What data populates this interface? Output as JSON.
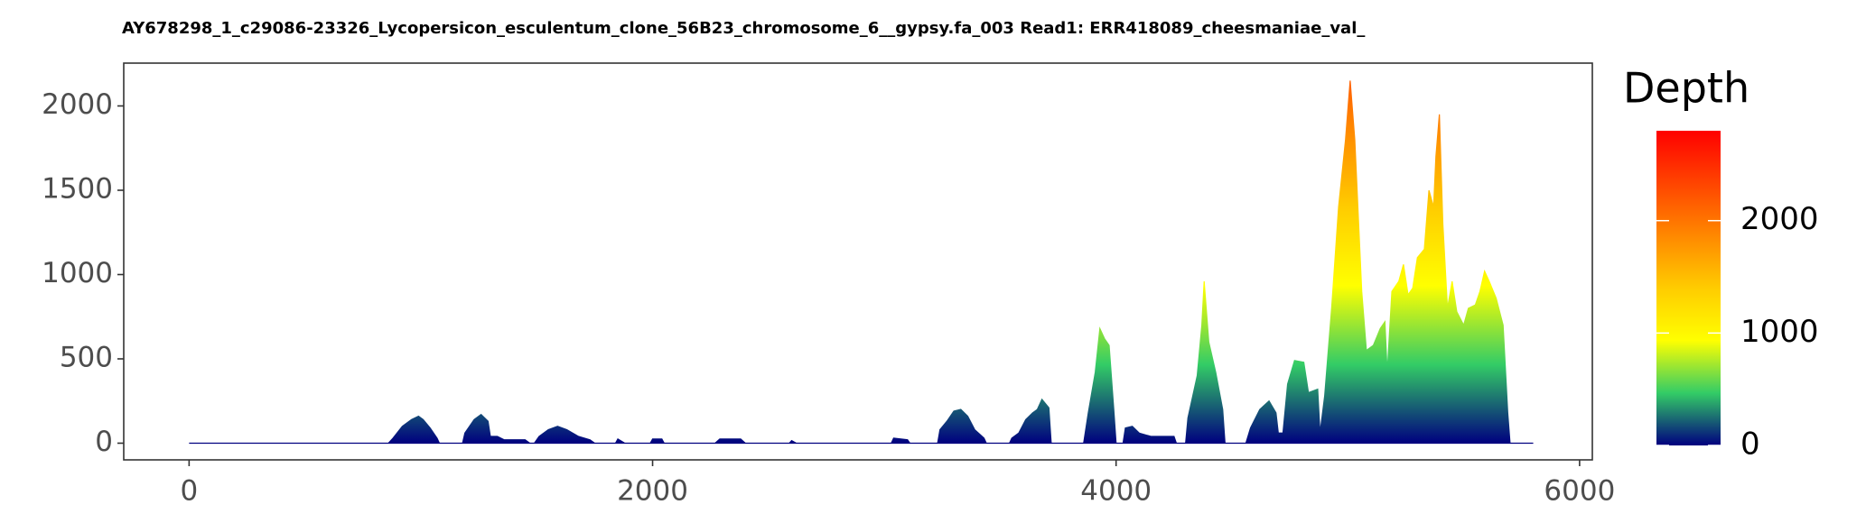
{
  "chart_data": {
    "type": "area",
    "title": "AY678298_1_c29086-23326_Lycopersicon_esculentum_clone_56B23_chromosome_6__gypsy.fa_003   Read1: ERR418089_cheesmaniae_val_",
    "x": [
      0,
      860,
      880,
      920,
      960,
      990,
      1010,
      1040,
      1070,
      1080,
      1180,
      1190,
      1230,
      1260,
      1290,
      1300,
      1330,
      1360,
      1450,
      1470,
      1490,
      1510,
      1550,
      1590,
      1630,
      1680,
      1730,
      1750,
      1840,
      1850,
      1880,
      1990,
      2000,
      2040,
      2050,
      2270,
      2290,
      2380,
      2400,
      2590,
      2600,
      2620,
      3030,
      3040,
      3100,
      3110,
      3230,
      3240,
      3270,
      3300,
      3330,
      3360,
      3390,
      3430,
      3440,
      3540,
      3550,
      3580,
      3610,
      3640,
      3660,
      3680,
      3710,
      3720,
      3860,
      3880,
      3910,
      3930,
      3950,
      3970,
      3990,
      4000,
      4030,
      4040,
      4070,
      4100,
      4150,
      4250,
      4260,
      4300,
      4310,
      4350,
      4370,
      4380,
      4400,
      4430,
      4460,
      4470,
      4560,
      4580,
      4620,
      4660,
      4690,
      4700,
      4720,
      4740,
      4770,
      4810,
      4830,
      4870,
      4880,
      4900,
      4930,
      4960,
      4990,
      5010,
      5030,
      5060,
      5080,
      5110,
      5140,
      5160,
      5170,
      5190,
      5220,
      5240,
      5260,
      5280,
      5300,
      5330,
      5350,
      5370,
      5380,
      5395,
      5410,
      5430,
      5450,
      5470,
      5500,
      5520,
      5550,
      5570,
      5590,
      5610,
      5640,
      5670,
      5690,
      5700,
      5800
    ],
    "values": [
      0,
      0,
      30,
      100,
      140,
      160,
      140,
      90,
      30,
      0,
      0,
      60,
      140,
      170,
      130,
      40,
      40,
      20,
      20,
      0,
      0,
      40,
      80,
      100,
      80,
      40,
      20,
      0,
      0,
      25,
      0,
      0,
      25,
      25,
      0,
      0,
      25,
      25,
      0,
      0,
      15,
      0,
      0,
      30,
      20,
      0,
      0,
      80,
      130,
      190,
      200,
      160,
      80,
      30,
      0,
      0,
      30,
      60,
      140,
      180,
      200,
      260,
      210,
      0,
      0,
      180,
      420,
      680,
      620,
      580,
      200,
      0,
      0,
      90,
      100,
      60,
      40,
      40,
      0,
      0,
      150,
      400,
      700,
      960,
      600,
      420,
      200,
      0,
      0,
      90,
      200,
      250,
      180,
      60,
      60,
      350,
      490,
      480,
      300,
      320,
      60,
      280,
      800,
      1400,
      1800,
      2150,
      1800,
      900,
      550,
      580,
      680,
      720,
      420,
      900,
      960,
      1060,
      880,
      920,
      1100,
      1150,
      1500,
      1400,
      1700,
      1950,
      1300,
      800,
      960,
      780,
      700,
      800,
      820,
      900,
      1020,
      960,
      860,
      700,
      180,
      0,
      0
    ],
    "xlim": [
      -282,
      6055
    ],
    "ylim": [
      -99,
      2254
    ],
    "xticks": [
      0,
      2000,
      4000,
      6000
    ],
    "yticks": [
      0,
      500,
      1000,
      1500,
      2000
    ],
    "grid": false,
    "legend_title": "Depth",
    "colors": [
      "#00007f",
      "#33cc66",
      "#ffff00",
      "#ffcc00",
      "#ff8800",
      "#ff4400",
      "#ff0000"
    ],
    "clim": [
      0,
      2800
    ],
    "cticks": [
      0,
      1000,
      2000
    ]
  }
}
